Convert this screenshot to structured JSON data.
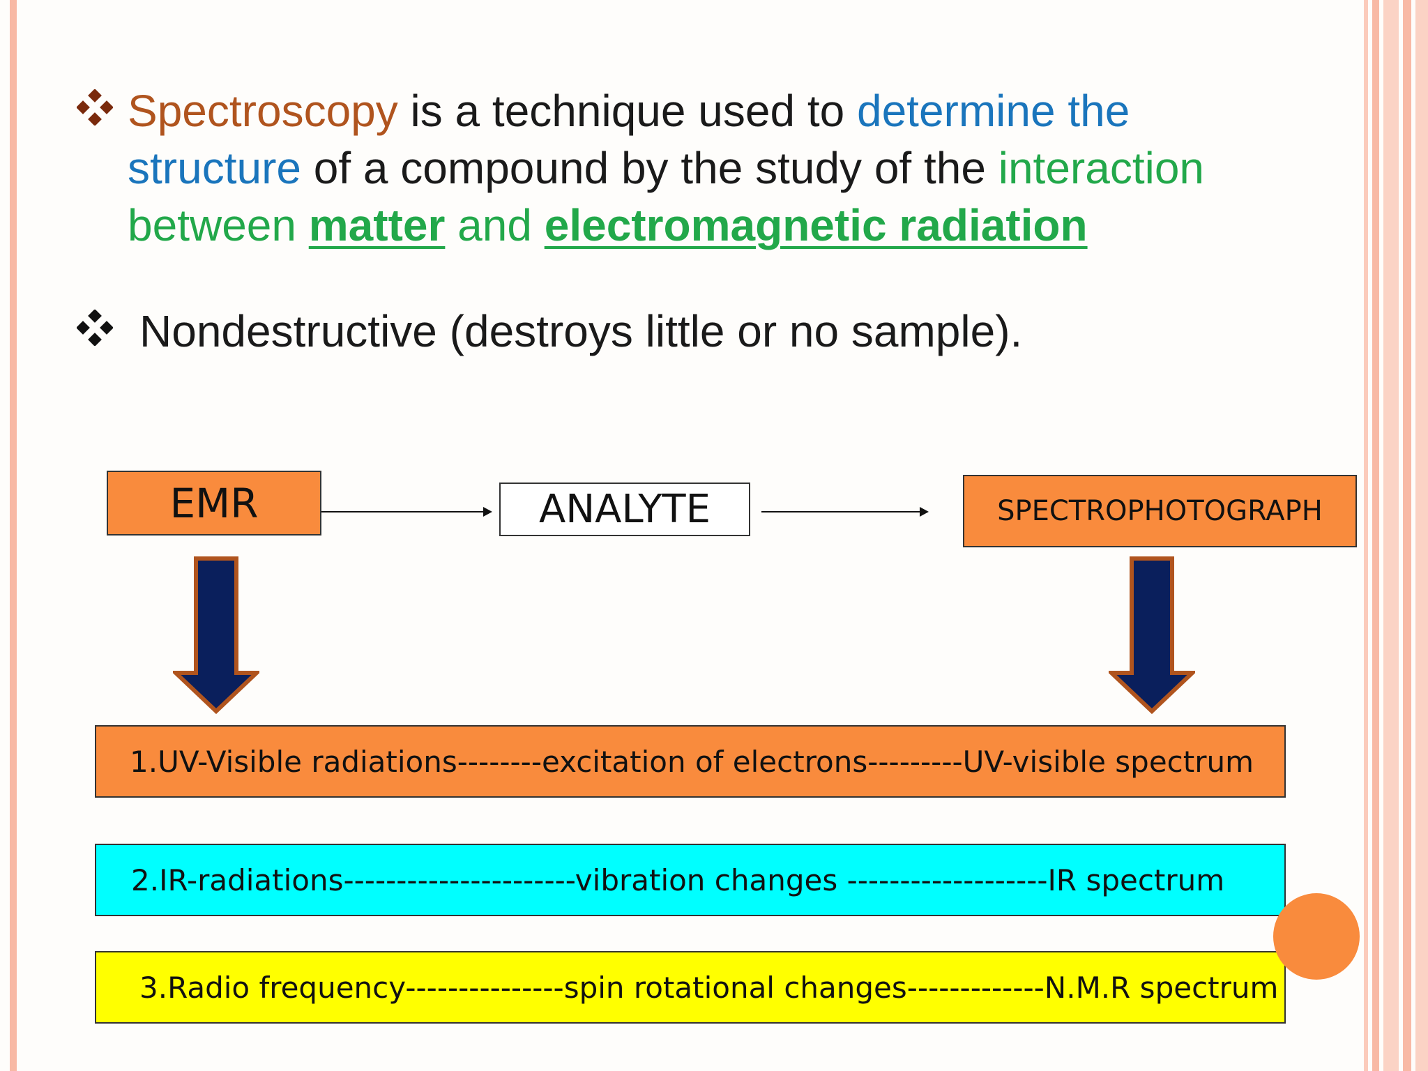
{
  "bullets": [
    {
      "parts": {
        "spectroscopy": "Spectroscopy",
        "mid1": " is a technique used to ",
        "determine": "determine the structure",
        "mid2": " of a compound by the study of the ",
        "interaction": "interaction between ",
        "matter": "matter",
        "and": " and ",
        "emr": "electromagnetic radiation"
      }
    },
    {
      "text": "Nondestructive (destroys little or no sample)."
    }
  ],
  "diagram": {
    "emr": "EMR",
    "analyte": "ANALYTE",
    "spectrophotograph": "SPECTROPHOTOGRAPH",
    "rows": [
      "1.UV-Visible radiations--------excitation of electrons---------UV-visible spectrum",
      "2.IR-radiations----------------------vibration changes -------------------IR spectrum",
      "3.Radio frequency---------------spin rotational changes-------------N.M.R spectrum"
    ]
  },
  "colors": {
    "brown": "#b0541e",
    "blue": "#1a75bc",
    "green": "#22a84a",
    "orange": "#f98b3d",
    "cyan": "#00ffff",
    "yellow": "#ffff00",
    "navy": "#0a1f5c",
    "border_pink": "#f8b9a5"
  },
  "icons": [
    "diamond-bullet-icon",
    "down-arrow-icon",
    "right-arrow-icon"
  ]
}
